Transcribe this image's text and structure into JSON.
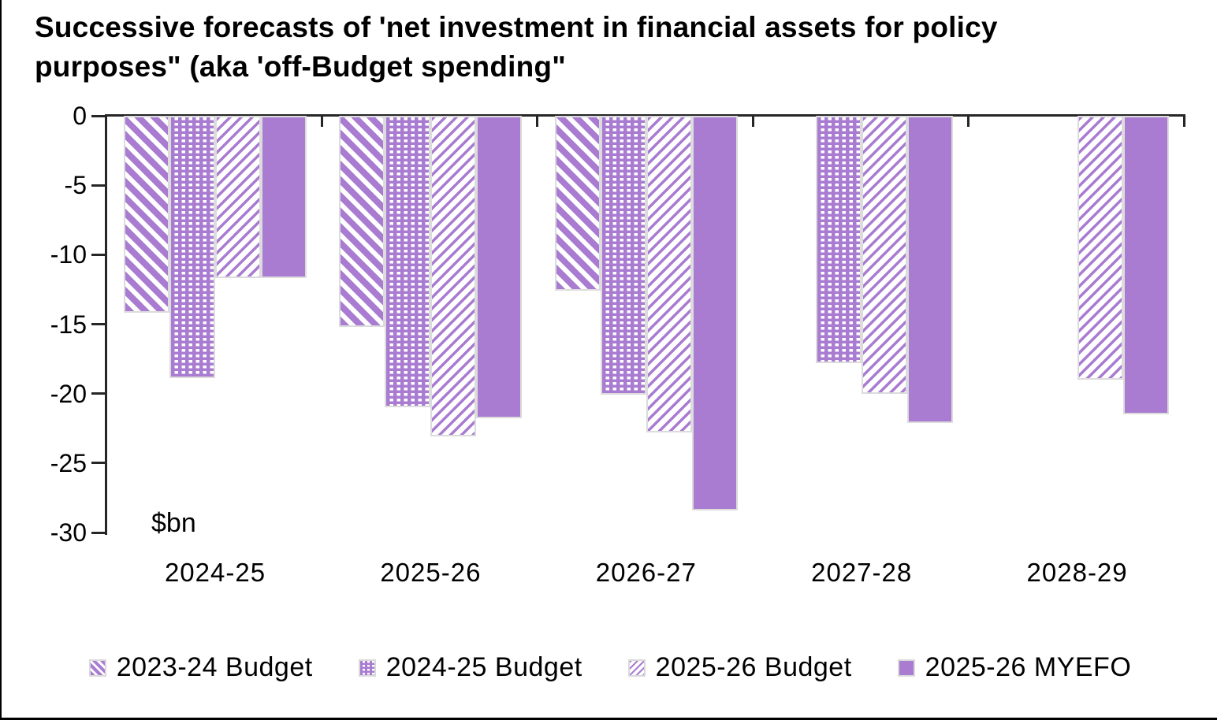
{
  "title": {
    "line1": "Successive forecasts of 'net investment in financial assets for policy",
    "line2": "purposes\" (aka 'off-Budget spending\""
  },
  "chart_data": {
    "type": "bar",
    "orientation": "vertical-negative",
    "unit_label": "$bn",
    "categories": [
      "2024-25",
      "2025-26",
      "2026-27",
      "2027-28",
      "2028-29"
    ],
    "series": [
      {
        "name": "2023-24 Budget",
        "pattern": "diagonal-down-stripes",
        "values": [
          -14.2,
          -15.2,
          -12.6,
          null,
          null
        ]
      },
      {
        "name": "2024-25 Budget",
        "pattern": "checker-grid",
        "values": [
          -18.9,
          -21.0,
          -20.1,
          -17.8,
          null
        ]
      },
      {
        "name": "2025-26 Budget",
        "pattern": "diagonal-up-light-stripes",
        "values": [
          -11.7,
          -23.1,
          -22.8,
          -20.0,
          -19.0
        ]
      },
      {
        "name": "2025-26 MYEFO",
        "pattern": "solid",
        "values": [
          -11.7,
          -21.8,
          -28.4,
          -22.1,
          -21.5
        ]
      }
    ],
    "y_axis": {
      "min": -30,
      "max": 0,
      "tick_step": 5,
      "ticks": [
        "0",
        "-5",
        "-10",
        "-15",
        "-20",
        "-25",
        "-30"
      ]
    },
    "grid": false,
    "legend_position": "bottom",
    "colors": {
      "bar_purple": "#a97cd2",
      "bar_border": "#d9d9d9",
      "axis": "#262626",
      "text": "#000000"
    }
  }
}
